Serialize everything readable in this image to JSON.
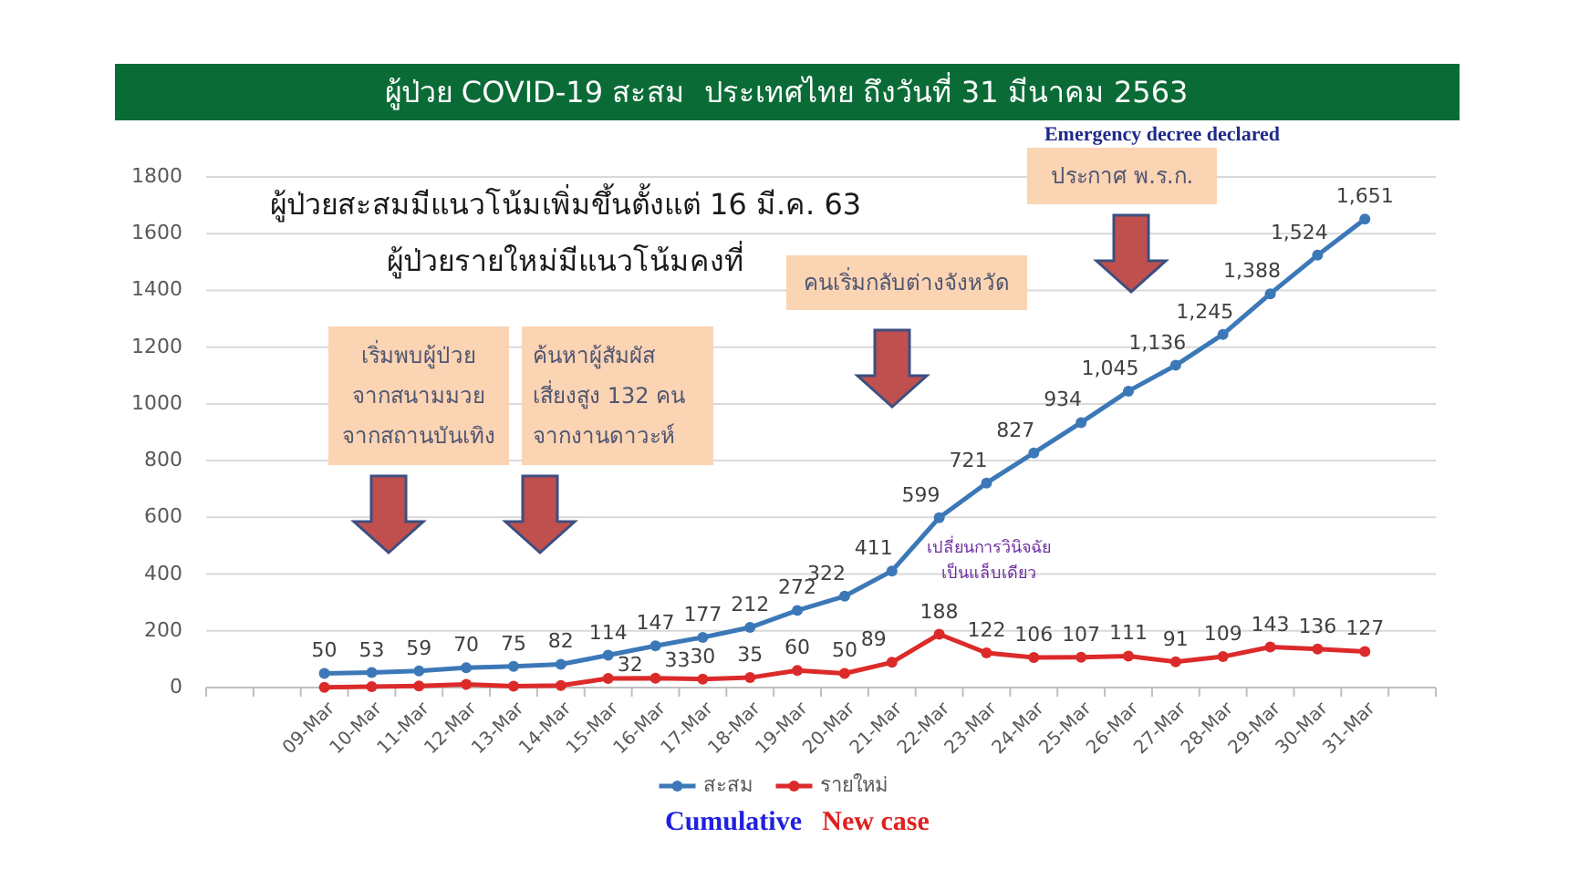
{
  "chart_data": {
    "type": "line",
    "title": "ผู้ป่วย COVID-19 สะสม  ประเทศไทย ถึงวันที่ 31 มีนาคม 2563",
    "subtitle": "ผู้ป่วยสะสมมีแนวโน้มเพิ่มขึ้นตั้งแต่ 16 มี.ค. 63\nผู้ป่วยรายใหม่มีแนวโน้มคงที่",
    "categories": [
      null,
      null,
      "09-Mar",
      "10-Mar",
      "11-Mar",
      "12-Mar",
      "13-Mar",
      "14-Mar",
      "15-Mar",
      "16-Mar",
      "17-Mar",
      "18-Mar",
      "19-Mar",
      "20-Mar",
      "21-Mar",
      "22-Mar",
      "23-Mar",
      "24-Mar",
      "25-Mar",
      "26-Mar",
      "27-Mar",
      "28-Mar",
      "29-Mar",
      "30-Mar",
      "31-Mar",
      null
    ],
    "series": [
      {
        "name": "สะสม",
        "color": "#3c78b8",
        "values": [
          null,
          null,
          50,
          53,
          59,
          70,
          75,
          82,
          114,
          147,
          177,
          212,
          272,
          322,
          411,
          599,
          721,
          827,
          934,
          1045,
          1136,
          1245,
          1388,
          1524,
          1651,
          null
        ],
        "value_labels": [
          null,
          null,
          "50",
          "53",
          "59",
          "70",
          "75",
          "82",
          "114",
          "147",
          "177",
          "212",
          "272",
          "322",
          "411",
          "599",
          "721",
          "827",
          "934",
          "1,045",
          "1,136",
          "1,245",
          "1,388",
          "1,524",
          "1,651",
          null
        ]
      },
      {
        "name": "รายใหม่",
        "color": "#dc2a2a",
        "values": [
          null,
          null,
          1,
          3,
          6,
          11,
          5,
          7,
          32,
          33,
          30,
          35,
          60,
          50,
          89,
          188,
          122,
          106,
          107,
          111,
          91,
          109,
          143,
          136,
          127,
          null
        ],
        "value_labels": [
          null,
          null,
          null,
          null,
          null,
          null,
          null,
          null,
          "32",
          "33",
          "30",
          "35",
          "60",
          "50",
          "89",
          "188",
          "122",
          "106",
          "107",
          "111",
          "91",
          "109",
          "143",
          "136",
          "127",
          null
        ]
      }
    ],
    "ylim": [
      0,
      1800
    ],
    "yticks": [
      0,
      200,
      400,
      600,
      800,
      1000,
      1200,
      1400,
      1600,
      1800
    ],
    "grid": "y",
    "legend": "bottom",
    "marker": "circle",
    "line_style": "solid",
    "annotations": [
      "เริ่มพบผู้ป่วย\nจากสนามมวย\nจากสถานบันเทิง",
      "ค้นหาผู้สัมผัส\nเสี่ยงสูง 132 คน\nจากงานดาวะห์",
      "คนเริ่มกลับต่างจังหวัด",
      "ประกาศ พ.ร.ก.",
      "Emergency decree declared",
      "เปลี่ยนการวินิจฉัย\nเป็นแล็บเดียว",
      "Cumulative",
      "New case"
    ]
  }
}
